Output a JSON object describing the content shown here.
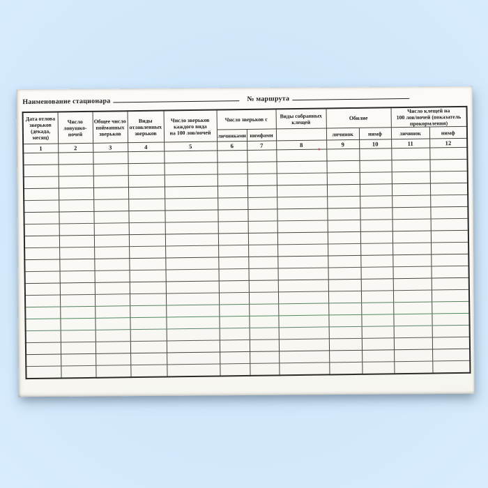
{
  "page": {
    "background_color": "#d2e8fb",
    "paper_color": "#faf9f5",
    "grid_line_color": "#45453f",
    "scan_artifact_green": "#4d8a60",
    "scan_artifact_red": "#b5574a"
  },
  "form": {
    "station_label": "Наименование стационара",
    "route_label": "№ маршрута"
  },
  "table": {
    "group_headers": {
      "animals_with": "Число зверьков с",
      "abundance": "Обилие",
      "ticks_per_100": "Число клещей на\n100 лов/ночей (показатель\nпрокормления)"
    },
    "column_headers": {
      "col1": "Дата отлова\nзверьков\n(декада,\nмесяц)",
      "col2": "Число\nловушко-\nночей",
      "col3": "Общее число\nпойманных\nзверьков",
      "col4": "Виды\nотловленных\nзверьков",
      "col5": "Число зверьков\nкаждого вида\nна 100 лов/ночей",
      "col6": "личинками",
      "col7": "нимфами",
      "col8": "Виды собранных\nклещей",
      "col9": "личинок",
      "col10": "нимф",
      "col11": "личинок",
      "col12": "нимф"
    },
    "column_numbers": [
      "1",
      "2",
      "3",
      "4",
      "5",
      "6",
      "7",
      "8",
      "9",
      "10",
      "11",
      "12"
    ],
    "column_count": 12,
    "blank_row_count": 19
  }
}
